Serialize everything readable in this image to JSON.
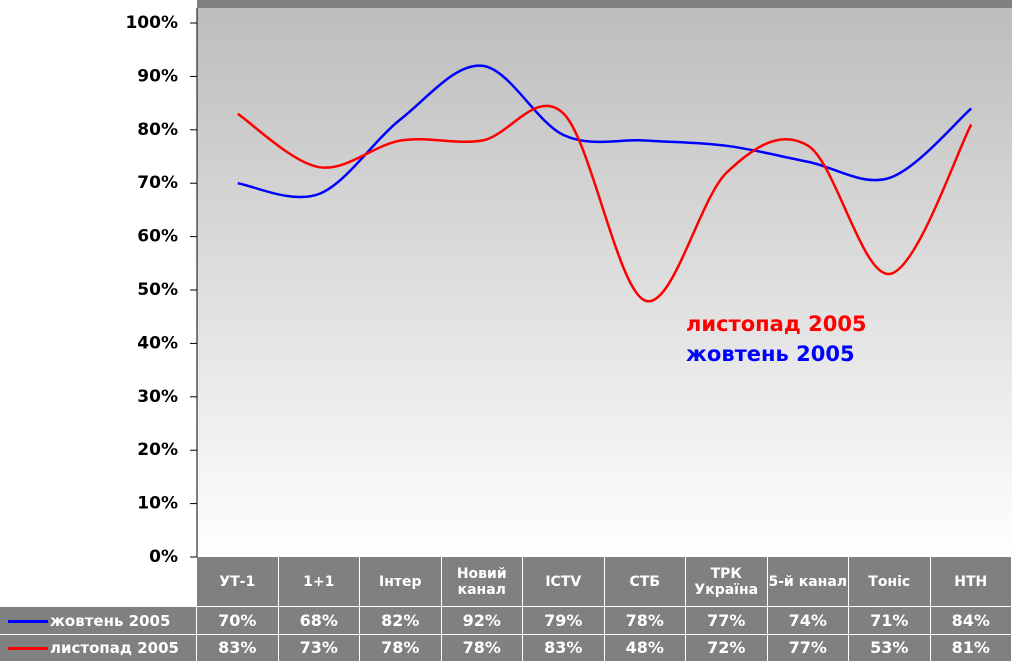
{
  "chart_data": {
    "type": "line",
    "categories": [
      "УТ-1",
      "1+1",
      "Інтер",
      "Новий канал",
      "ICTV",
      "СТБ",
      "ТРК Україна",
      "5-й канал",
      "Тоніс",
      "НТН"
    ],
    "series": [
      {
        "name": "жовтень 2005",
        "color": "#0000ff",
        "values": [
          70,
          68,
          82,
          92,
          79,
          78,
          77,
          74,
          71,
          84
        ],
        "value_labels": [
          "70%",
          "68%",
          "82%",
          "92%",
          "79%",
          "78%",
          "77%",
          "74%",
          "71%",
          "84%"
        ]
      },
      {
        "name": "листопад 2005",
        "color": "#ff0000",
        "values": [
          83,
          73,
          78,
          78,
          83,
          48,
          72,
          77,
          53,
          81
        ],
        "value_labels": [
          "83%",
          "73%",
          "78%",
          "78%",
          "83%",
          "48%",
          "72%",
          "77%",
          "53%",
          "81%"
        ]
      }
    ],
    "ylim": [
      0,
      100
    ],
    "yticks": [
      {
        "value": 0,
        "label": "0%"
      },
      {
        "value": 10,
        "label": "10%"
      },
      {
        "value": 20,
        "label": "20%"
      },
      {
        "value": 30,
        "label": "30%"
      },
      {
        "value": 40,
        "label": "40%"
      },
      {
        "value": 50,
        "label": "50%"
      },
      {
        "value": 60,
        "label": "60%"
      },
      {
        "value": 70,
        "label": "70%"
      },
      {
        "value": 80,
        "label": "80%"
      },
      {
        "value": 90,
        "label": "90%"
      },
      {
        "value": 100,
        "label": "100%"
      }
    ]
  }
}
